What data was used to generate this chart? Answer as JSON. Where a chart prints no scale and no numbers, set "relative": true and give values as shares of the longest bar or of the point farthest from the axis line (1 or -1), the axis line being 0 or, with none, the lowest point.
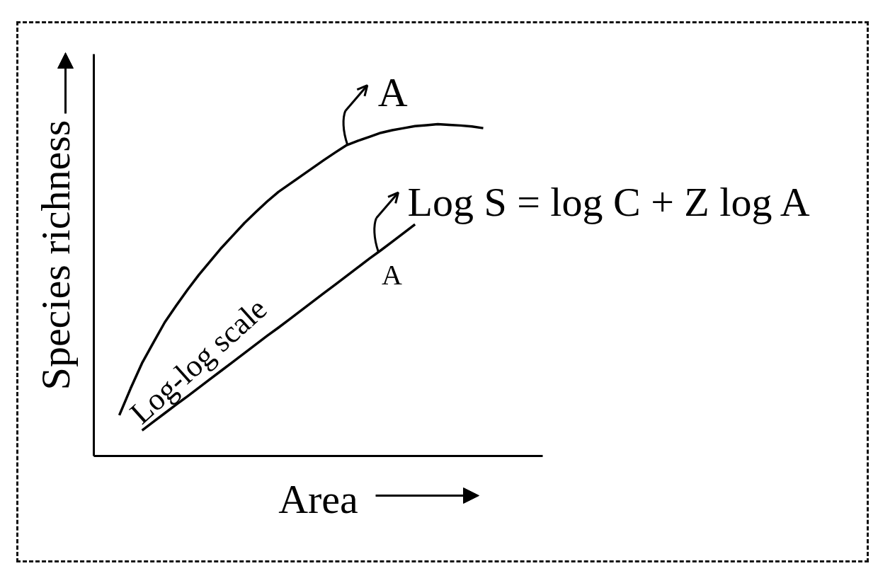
{
  "chart_data": {
    "type": "line",
    "relative": true,
    "xlabel": "Area",
    "ylabel": "Species richness",
    "categories": [
      null,
      null,
      null,
      null,
      null,
      null,
      null,
      null,
      null,
      null,
      null,
      null,
      null,
      null,
      null,
      null,
      null,
      null,
      null,
      null,
      null,
      null,
      null,
      null,
      null,
      null,
      null,
      null,
      null,
      null,
      null,
      null,
      null
    ],
    "series": [
      {
        "color": "#000000",
        "values": [
          0.123,
          0.204,
          0.28,
          0.342,
          0.403,
          0.453,
          0.501,
          0.546,
          0.587,
          0.628,
          0.665,
          0.702,
          0.735,
          0.767,
          0.796,
          0.82,
          0.844,
          0.868,
          0.892,
          0.915,
          0.937,
          0.95,
          0.962,
          0.974,
          0.982,
          0.988,
          0.994,
          0.997,
          1.0,
          0.998,
          0.996,
          0.993,
          0.988
        ]
      },
      {
        "color": "#000000",
        "values": [
          null,
          null,
          0.077,
          0.103,
          0.129,
          0.155,
          0.18,
          0.206,
          0.232,
          0.258,
          0.284,
          0.31,
          0.336,
          0.362,
          0.387,
          0.413,
          0.439,
          0.465,
          0.491,
          0.517,
          0.543,
          0.569,
          0.595,
          0.62,
          0.646,
          0.672,
          0.698,
          null,
          null,
          null,
          null,
          null,
          null
        ]
      }
    ],
    "annotations": [
      "A",
      "Log S = log C + Z log A",
      "Log-log scale",
      "A"
    ]
  }
}
